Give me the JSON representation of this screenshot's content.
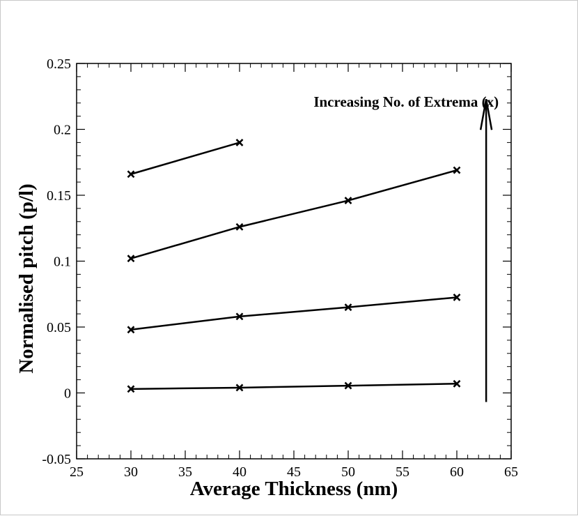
{
  "chart_data": {
    "type": "line",
    "title": "",
    "xlabel": "Average Thickness (nm)",
    "ylabel": "Normalised pitch (p/l)",
    "xlim": [
      25,
      65
    ],
    "ylim": [
      -0.05,
      0.25
    ],
    "x_ticks": [
      25,
      30,
      35,
      40,
      45,
      50,
      55,
      60,
      65
    ],
    "y_ticks": [
      -0.05,
      0,
      0.05,
      0.1,
      0.15,
      0.2,
      0.25
    ],
    "x_tick_labels": [
      "25",
      "30",
      "35",
      "40",
      "45",
      "50",
      "55",
      "60",
      "65"
    ],
    "y_tick_labels": [
      "-0.05",
      "0",
      "0.05",
      "0.1",
      "0.15",
      "0.2",
      "0.25"
    ],
    "marker": "x",
    "grid": false,
    "series": [
      {
        "name": "series-1",
        "x": [
          30,
          40,
          50,
          60
        ],
        "y": [
          0.003,
          0.004,
          0.0055,
          0.007
        ]
      },
      {
        "name": "series-2",
        "x": [
          30,
          40,
          50,
          60
        ],
        "y": [
          0.048,
          0.058,
          0.065,
          0.0725
        ]
      },
      {
        "name": "series-3",
        "x": [
          30,
          40,
          50,
          60
        ],
        "y": [
          0.102,
          0.126,
          0.146,
          0.169
        ]
      },
      {
        "name": "series-4",
        "x": [
          30,
          40
        ],
        "y": [
          0.166,
          0.19
        ]
      }
    ],
    "annotation": {
      "text": "Increasing No. of Extrema (x)",
      "arrow_x": 62.7,
      "arrow_from_y": 0.0,
      "arrow_to_y": 0.207
    }
  }
}
